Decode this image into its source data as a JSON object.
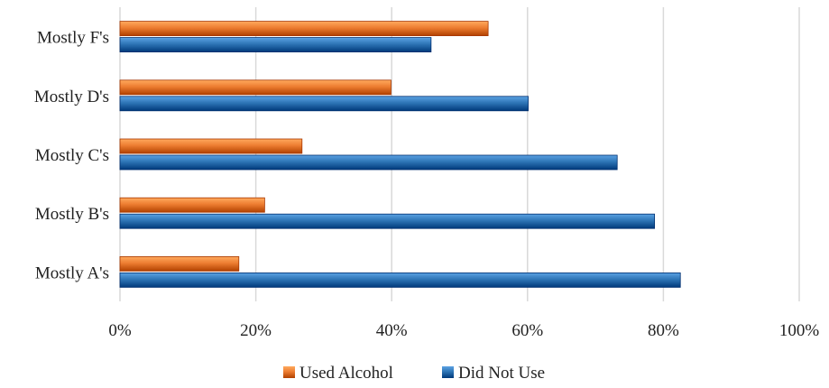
{
  "colors": {
    "used_alcohol": "#ED7D31",
    "did_not_use": "#2E75B6",
    "grid": "#d9d9d9",
    "text": "#222222"
  },
  "chart_data": {
    "type": "bar",
    "orientation": "horizontal",
    "categories": [
      "Mostly A's",
      "Mostly B's",
      "Mostly C's",
      "Mostly D's",
      "Mostly F's"
    ],
    "series": [
      {
        "name": "Used Alcohol",
        "values": [
          17.5,
          21.3,
          26.8,
          39.9,
          54.2
        ]
      },
      {
        "name": "Did Not Use",
        "values": [
          82.5,
          78.7,
          73.2,
          60.1,
          45.8
        ]
      }
    ],
    "xlim": [
      0,
      100
    ],
    "x_ticks": [
      0,
      20,
      40,
      60,
      80,
      100
    ],
    "x_tick_labels": [
      "0%",
      "20%",
      "40%",
      "60%",
      "80%",
      "100%"
    ],
    "grid": "vertical major gridlines",
    "legend": {
      "position": "bottom",
      "entries": [
        "Used Alcohol",
        "Did Not Use"
      ]
    },
    "title": "",
    "xlabel": "",
    "ylabel": ""
  }
}
